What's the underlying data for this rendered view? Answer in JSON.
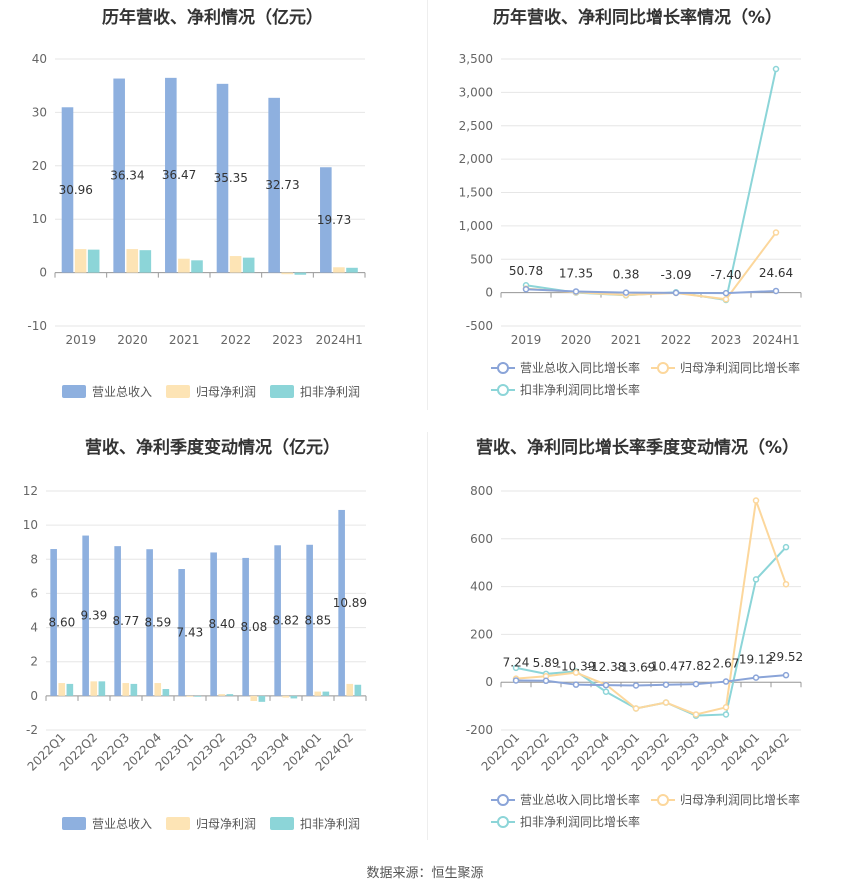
{
  "source": "数据来源：恒生聚源",
  "colors": {
    "revenue": "#8eb0df",
    "net_profit": "#fde4b5",
    "deducted_profit": "#8cd5d8",
    "revenue_line": "#8aa4d8",
    "net_line": "#fcd79c",
    "deducted_line": "#8cd5d8"
  },
  "chart_data": [
    {
      "title": "历年营收、净利情况（亿元）",
      "type": "bar",
      "categories": [
        "2019",
        "2020",
        "2021",
        "2022",
        "2023",
        "2024H1"
      ],
      "ylim": [
        -10,
        40
      ],
      "yticks": [
        -10,
        0,
        10,
        20,
        30,
        40
      ],
      "legend_position": "bottom",
      "grid": true,
      "series": [
        {
          "name": "营业总收入",
          "values": [
            30.96,
            36.34,
            36.47,
            35.35,
            32.73,
            19.73
          ],
          "labels": [
            "30.96",
            "36.34",
            "36.47",
            "35.35",
            "32.73",
            "19.73"
          ]
        },
        {
          "name": "归母净利润",
          "values": [
            4.4,
            4.4,
            2.6,
            3.1,
            -0.3,
            1.0
          ]
        },
        {
          "name": "扣非净利润",
          "values": [
            4.3,
            4.2,
            2.3,
            2.8,
            -0.4,
            0.9
          ]
        }
      ]
    },
    {
      "title": "历年营收、净利同比增长率情况（%）",
      "type": "line",
      "categories": [
        "2019",
        "2020",
        "2021",
        "2022",
        "2023",
        "2024H1"
      ],
      "ylim": [
        -500,
        3500
      ],
      "yticks": [
        -500,
        0,
        500,
        1000,
        1500,
        2000,
        2500,
        3000,
        3500
      ],
      "ytick_labels": [
        "-500",
        "0",
        "500",
        "1,000",
        "1,500",
        "2,000",
        "2,500",
        "3,000",
        "3,500"
      ],
      "legend_position": "bottom",
      "grid": true,
      "series": [
        {
          "name": "营业总收入同比增长率",
          "values": [
            50.78,
            17.35,
            0.38,
            -3.09,
            -7.4,
            24.64
          ],
          "labels": [
            "50.78",
            "17.35",
            "0.38",
            "-3.09",
            "-7.40",
            "24.64"
          ]
        },
        {
          "name": "归母净利润同比增长率",
          "values": [
            60,
            5,
            -35,
            -5,
            -100,
            900
          ]
        },
        {
          "name": "扣非净利润同比增长率",
          "values": [
            110,
            0,
            -40,
            5,
            -110,
            3350
          ]
        }
      ]
    },
    {
      "title": "营收、净利季度变动情况（亿元）",
      "type": "bar",
      "categories": [
        "2022Q1",
        "2022Q2",
        "2022Q3",
        "2022Q4",
        "2023Q1",
        "2023Q2",
        "2023Q3",
        "2023Q4",
        "2024Q1",
        "2024Q2"
      ],
      "ylim": [
        -2,
        12
      ],
      "yticks": [
        -2,
        0,
        2,
        4,
        6,
        8,
        10,
        12
      ],
      "legend_position": "bottom",
      "grid": true,
      "series": [
        {
          "name": "营业总收入",
          "values": [
            8.6,
            9.39,
            8.77,
            8.59,
            7.43,
            8.4,
            8.08,
            8.82,
            8.85,
            10.89
          ],
          "labels": [
            "8.60",
            "9.39",
            "8.77",
            "8.59",
            "7.43",
            "8.40",
            "8.08",
            "8.82",
            "8.85",
            "10.89"
          ]
        },
        {
          "name": "归母净利润",
          "values": [
            0.75,
            0.85,
            0.75,
            0.75,
            -0.05,
            0.1,
            -0.3,
            -0.1,
            0.25,
            0.7
          ]
        },
        {
          "name": "扣非净利润",
          "values": [
            0.7,
            0.85,
            0.7,
            0.4,
            -0.05,
            0.1,
            -0.35,
            -0.15,
            0.25,
            0.65
          ]
        }
      ]
    },
    {
      "title": "营收、净利同比增长率季度变动情况（%）",
      "type": "line",
      "categories": [
        "2022Q1",
        "2022Q2",
        "2022Q3",
        "2022Q4",
        "2023Q1",
        "2023Q2",
        "2023Q3",
        "2023Q4",
        "2024Q1",
        "2024Q2"
      ],
      "ylim": [
        -200,
        800
      ],
      "yticks": [
        -200,
        0,
        200,
        400,
        600,
        800
      ],
      "legend_position": "bottom",
      "grid": true,
      "series": [
        {
          "name": "营业总收入同比增长率",
          "values": [
            7.24,
            5.89,
            -10.39,
            -12.38,
            -13.69,
            -10.47,
            -7.82,
            2.67,
            19.12,
            29.52
          ],
          "labels": [
            "7.24",
            "5.89",
            "-10.39",
            "-12.38",
            "-13.69",
            "-10.47",
            "-7.82",
            "2.67",
            "19.12",
            "29.52"
          ]
        },
        {
          "name": "归母净利润同比增长率",
          "values": [
            15,
            25,
            40,
            -10,
            -110,
            -85,
            -135,
            -105,
            760,
            410
          ]
        },
        {
          "name": "扣非净利润同比增长率",
          "values": [
            60,
            35,
            45,
            -40,
            -110,
            -85,
            -140,
            -135,
            430,
            565
          ]
        }
      ]
    }
  ]
}
